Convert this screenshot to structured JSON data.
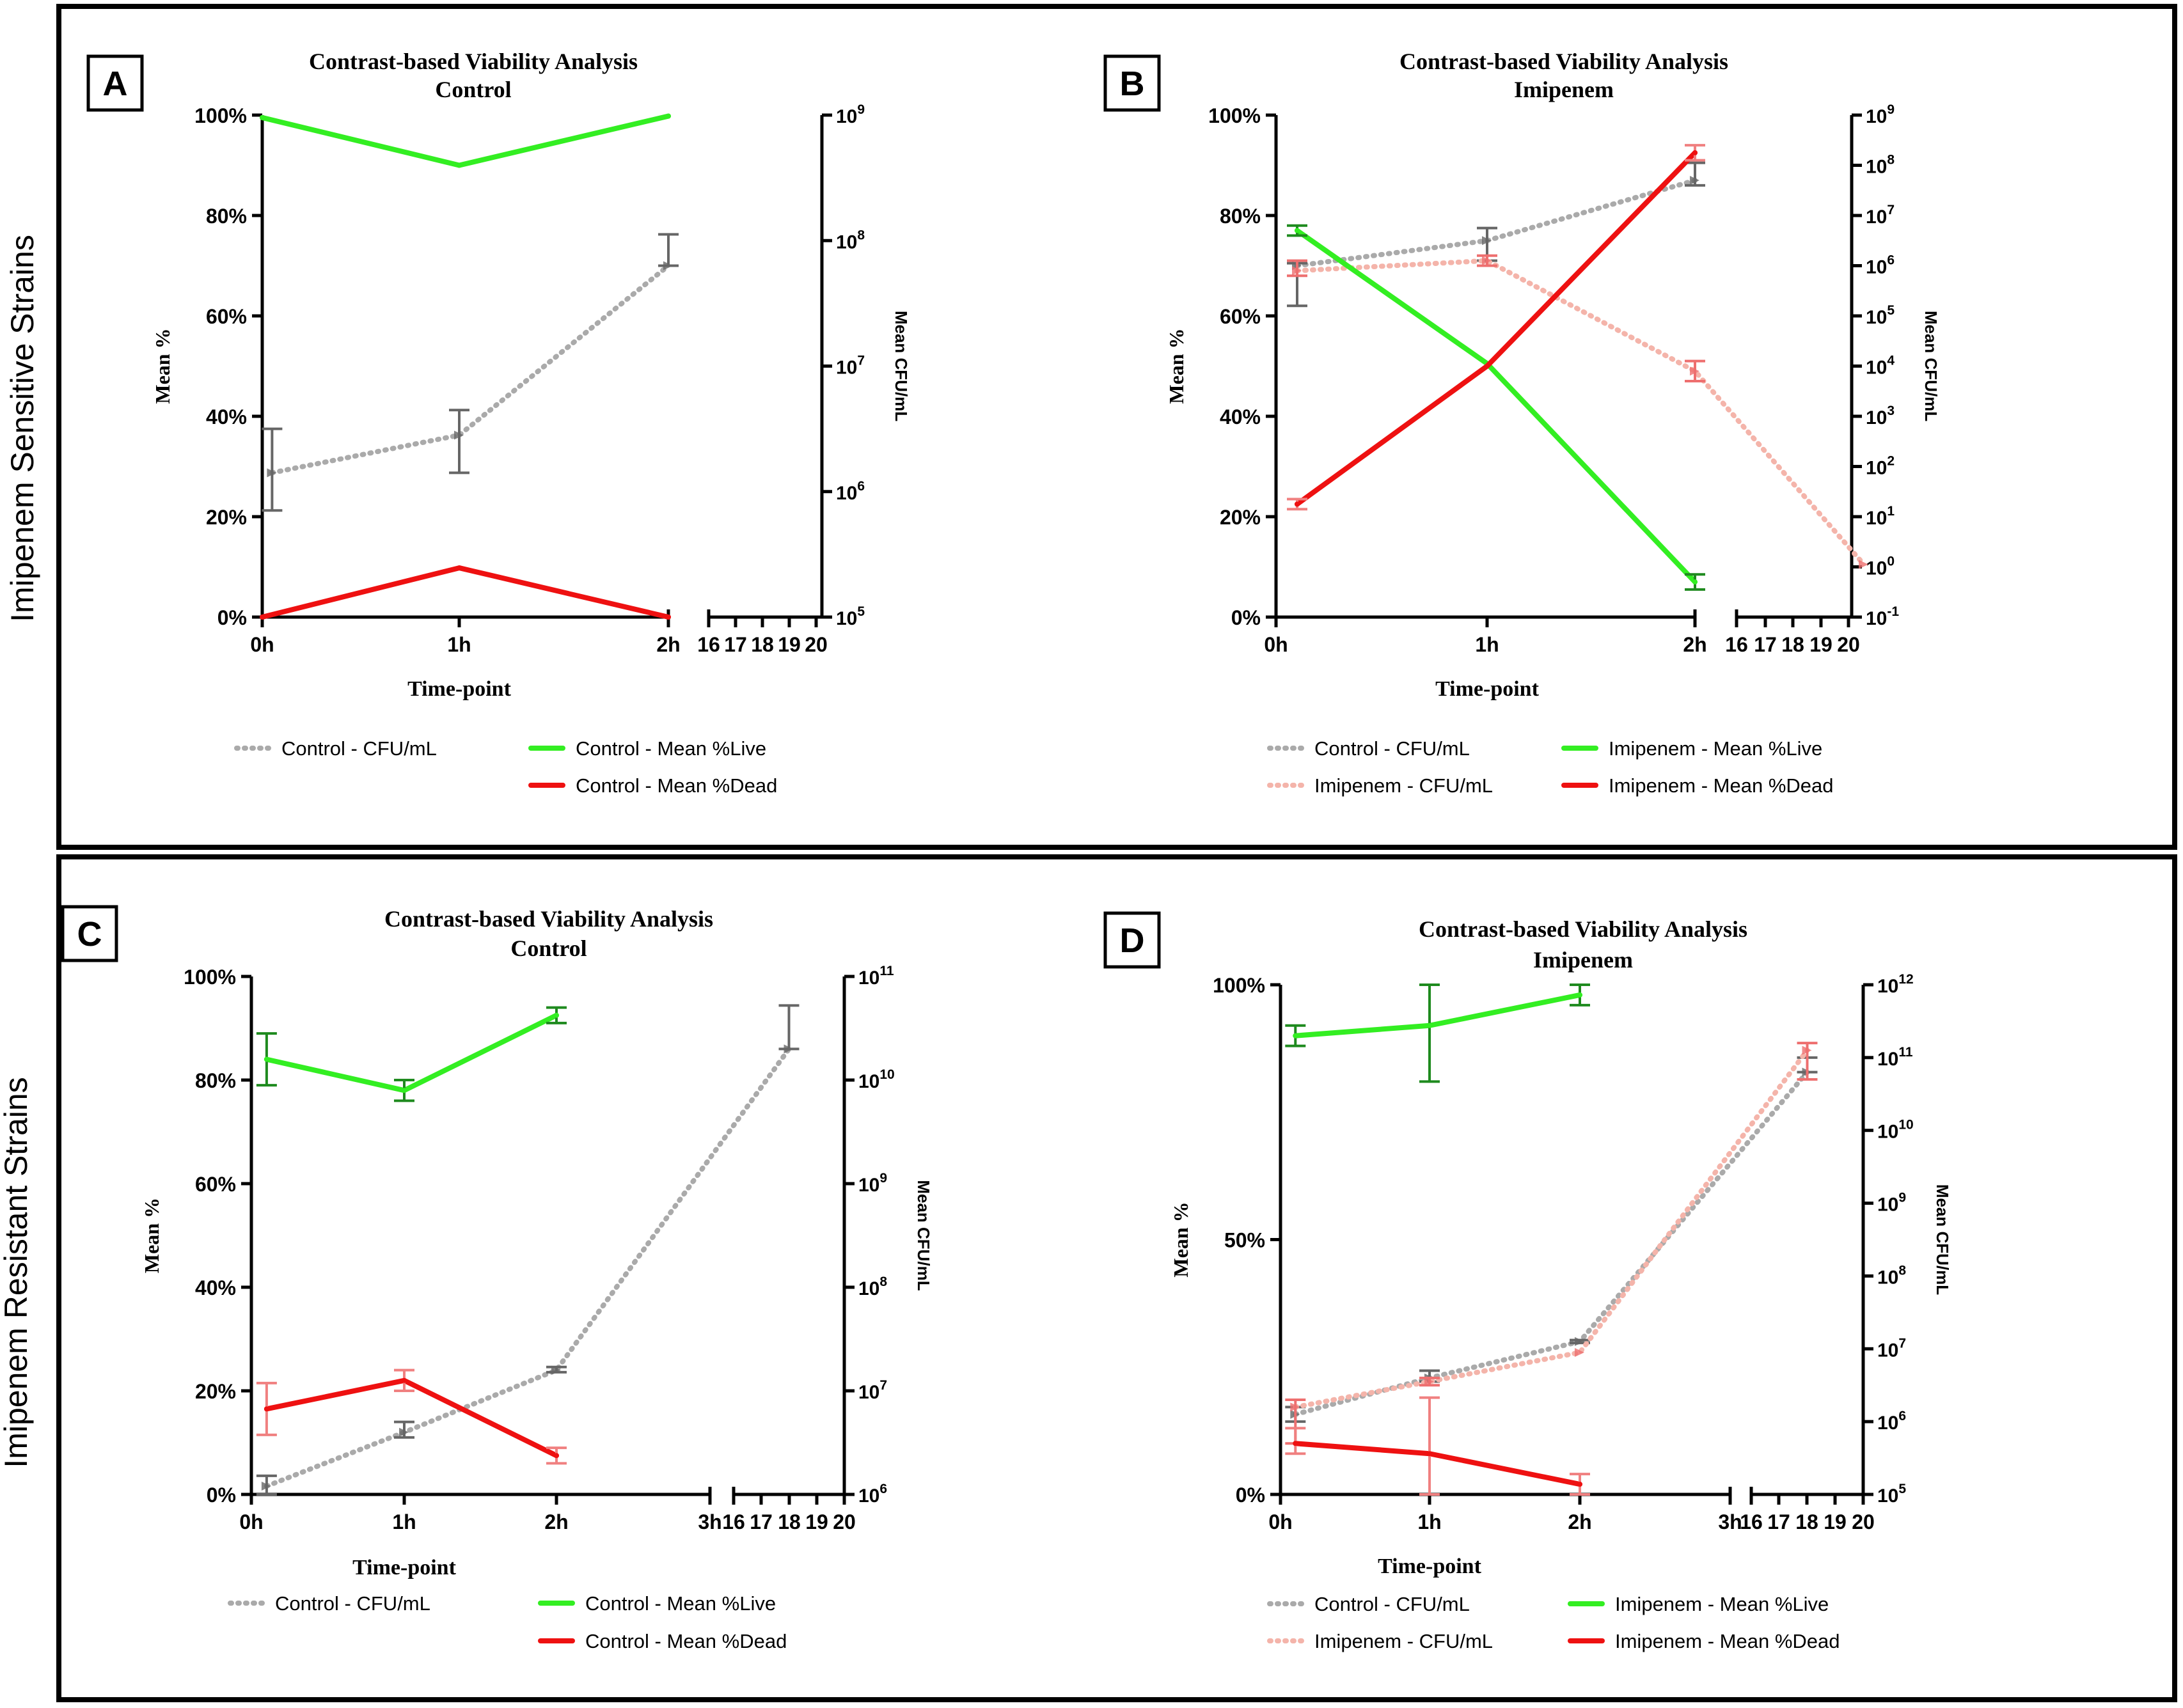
{
  "figure": {
    "row_labels": [
      "Imipenem Sensitive Strains",
      "Imipenem Resistant Strains"
    ]
  },
  "colors": {
    "live": "#33ee22",
    "live_err": "#1e8a1e",
    "dead": "#ee1111",
    "dead_err": "#f08080",
    "control_cfu": "#aaaaaa",
    "control_cfu_err": "#666666",
    "imipenem_cfu": "#f4b4aa",
    "imipenem_cfu_err": "#ee6f6f"
  },
  "chart_data": [
    {
      "panel": "A",
      "type": "line",
      "title": "Contrast-based Viability Analysis",
      "subtitle": "Control",
      "xlabel": "Time-point",
      "ylabel": "Mean %",
      "y2label": "Mean CFU/mL",
      "x_ticks": [
        "0h",
        "1h",
        "2h"
      ],
      "x_break_ticks": [
        "16",
        "17",
        "18",
        "19",
        "20"
      ],
      "y_ticks": [
        "0%",
        "20%",
        "40%",
        "60%",
        "80%",
        "100%"
      ],
      "y_range": [
        0,
        100
      ],
      "y2_range_log10": [
        5,
        9
      ],
      "y2_ticks": [
        {
          "base": "10",
          "exp": "5"
        },
        {
          "base": "10",
          "exp": "6"
        },
        {
          "base": "10",
          "exp": "7"
        },
        {
          "base": "10",
          "exp": "8"
        },
        {
          "base": "10",
          "exp": "9"
        }
      ],
      "series": [
        {
          "name": "Control - CFU/mL",
          "axis": "right",
          "style": "dotted",
          "color": "control_cfu",
          "err_color": "control_cfu_err",
          "points": [
            {
              "x": 0.05,
              "y": 6.15,
              "lo": 5.85,
              "hi": 6.5
            },
            {
              "x": 1,
              "y": 6.45,
              "lo": 6.15,
              "hi": 6.65
            },
            {
              "x": 2,
              "y": 7.8,
              "lo": 7.8,
              "hi": 8.05
            }
          ]
        },
        {
          "name": "Control - Mean %Live",
          "axis": "left",
          "style": "solid",
          "color": "live",
          "err_color": "live_err",
          "points": [
            {
              "x": 0,
              "y": 99.5
            },
            {
              "x": 1,
              "y": 90
            },
            {
              "x": 2,
              "y": 99.8
            }
          ]
        },
        {
          "name": "Control - Mean %Dead",
          "axis": "left",
          "style": "solid",
          "color": "dead",
          "err_color": "dead_err",
          "points": [
            {
              "x": 0,
              "y": 0
            },
            {
              "x": 1,
              "y": 9.8
            },
            {
              "x": 2,
              "y": 0
            }
          ]
        }
      ],
      "legend": [
        {
          "label": "Control - CFU/mL",
          "color": "control_cfu",
          "style": "dotted"
        },
        {
          "label": "Control - Mean %Live",
          "color": "live",
          "style": "solid"
        },
        {
          "label": "Control - Mean %Dead",
          "color": "dead",
          "style": "solid"
        }
      ]
    },
    {
      "panel": "B",
      "type": "line",
      "title": "Contrast-based Viability Analysis",
      "subtitle": "Imipenem",
      "xlabel": "Time-point",
      "ylabel": "Mean %",
      "y2label": "Mean CFU/mL",
      "x_ticks": [
        "0h",
        "1h",
        "2h"
      ],
      "x_break_ticks": [
        "16",
        "17",
        "18",
        "19",
        "20"
      ],
      "y_ticks": [
        "0%",
        "20%",
        "40%",
        "60%",
        "80%",
        "100%"
      ],
      "y_range": [
        0,
        100
      ],
      "y2_range_log10": [
        -1,
        9
      ],
      "y2_ticks": [
        {
          "base": "10",
          "exp": "-1"
        },
        {
          "base": "10",
          "exp": "0"
        },
        {
          "base": "10",
          "exp": "1"
        },
        {
          "base": "10",
          "exp": "2"
        },
        {
          "base": "10",
          "exp": "3"
        },
        {
          "base": "10",
          "exp": "4"
        },
        {
          "base": "10",
          "exp": "5"
        },
        {
          "base": "10",
          "exp": "6"
        },
        {
          "base": "10",
          "exp": "7"
        },
        {
          "base": "10",
          "exp": "8"
        },
        {
          "base": "10",
          "exp": "9"
        }
      ],
      "series": [
        {
          "name": "Control - CFU/mL",
          "axis": "right",
          "style": "dotted",
          "color": "control_cfu",
          "err_color": "control_cfu_err",
          "points": [
            {
              "x": 0.1,
              "y": 6.0,
              "lo": 5.2,
              "hi": 6.05
            },
            {
              "x": 1,
              "y": 6.5,
              "lo": 6.1,
              "hi": 6.75
            },
            {
              "x": 2,
              "y": 7.7,
              "lo": 7.6,
              "hi": 8.05
            }
          ]
        },
        {
          "name": "Imipenem - CFU/mL",
          "axis": "right",
          "style": "dotted",
          "color": "imipenem_cfu",
          "err_color": "imipenem_cfu_err",
          "points": [
            {
              "x": 0.1,
              "y": 5.9,
              "lo": 5.8,
              "hi": 6.1
            },
            {
              "x": 1,
              "y": 6.1,
              "lo": 6.0,
              "hi": 6.2
            },
            {
              "x": 2,
              "y": 3.9,
              "lo": 3.7,
              "hi": 4.1
            },
            {
              "x": 2.8,
              "y": 0.05
            }
          ]
        },
        {
          "name": "Imipenem - Mean %Live",
          "axis": "left",
          "style": "solid",
          "color": "live",
          "err_color": "live_err",
          "points": [
            {
              "x": 0.1,
              "y": 77,
              "lo": 76,
              "hi": 78
            },
            {
              "x": 1,
              "y": 50.5
            },
            {
              "x": 2,
              "y": 7,
              "lo": 5.5,
              "hi": 8.5
            }
          ]
        },
        {
          "name": "Imipenem - Mean %Dead",
          "axis": "left",
          "style": "solid",
          "color": "dead",
          "err_color": "dead_err",
          "points": [
            {
              "x": 0.1,
              "y": 22.5,
              "lo": 21.5,
              "hi": 23.5
            },
            {
              "x": 1,
              "y": 50
            },
            {
              "x": 2,
              "y": 92.5,
              "lo": 91,
              "hi": 94
            }
          ]
        }
      ],
      "legend": [
        {
          "label": "Control - CFU/mL",
          "color": "control_cfu",
          "style": "dotted"
        },
        {
          "label": "Imipenem - Mean %Live",
          "color": "live",
          "style": "solid"
        },
        {
          "label": "Imipenem - CFU/mL",
          "color": "imipenem_cfu",
          "style": "dotted"
        },
        {
          "label": "Imipenem - Mean %Dead",
          "color": "dead",
          "style": "solid"
        }
      ]
    },
    {
      "panel": "C",
      "type": "line",
      "title": "Contrast-based Viability Analysis",
      "subtitle": "Control",
      "xlabel": "Time-point",
      "ylabel": "Mean %",
      "y2label": "Mean CFU/mL",
      "x_ticks": [
        "0h",
        "1h",
        "2h",
        "3h"
      ],
      "x_break_ticks": [
        "16",
        "17",
        "18",
        "19",
        "20"
      ],
      "y_ticks": [
        "0%",
        "20%",
        "40%",
        "60%",
        "80%",
        "100%"
      ],
      "y_range": [
        0,
        100
      ],
      "y2_range_log10": [
        6,
        11
      ],
      "y2_ticks": [
        {
          "base": "10",
          "exp": "6"
        },
        {
          "base": "10",
          "exp": "7"
        },
        {
          "base": "10",
          "exp": "8"
        },
        {
          "base": "10",
          "exp": "9"
        },
        {
          "base": "10",
          "exp": "10"
        },
        {
          "base": "10",
          "exp": "11"
        }
      ],
      "series": [
        {
          "name": "Control - CFU/mL",
          "axis": "right",
          "style": "dotted",
          "color": "control_cfu",
          "err_color": "control_cfu_err",
          "points": [
            {
              "x": 0.1,
              "y": 6.08,
              "lo": 6.0,
              "hi": 6.18
            },
            {
              "x": 1,
              "y": 6.6,
              "lo": 6.55,
              "hi": 6.7
            },
            {
              "x": 2,
              "y": 7.2,
              "lo": 7.18,
              "hi": 7.23
            },
            {
              "x": 18,
              "y": 10.3,
              "lo": 10.3,
              "hi": 10.72
            }
          ]
        },
        {
          "name": "Control - Mean %Live",
          "axis": "left",
          "style": "solid",
          "color": "live",
          "err_color": "live_err",
          "points": [
            {
              "x": 0.1,
              "y": 84,
              "lo": 79,
              "hi": 89
            },
            {
              "x": 1,
              "y": 78,
              "lo": 76,
              "hi": 80
            },
            {
              "x": 2,
              "y": 92.5,
              "lo": 91,
              "hi": 94
            }
          ]
        },
        {
          "name": "Control - Mean %Dead",
          "axis": "left",
          "style": "solid",
          "color": "dead",
          "err_color": "dead_err",
          "points": [
            {
              "x": 0.1,
              "y": 16.5,
              "lo": 11.5,
              "hi": 21.5
            },
            {
              "x": 1,
              "y": 22,
              "lo": 20,
              "hi": 24
            },
            {
              "x": 2,
              "y": 7.5,
              "lo": 6,
              "hi": 9
            }
          ]
        }
      ],
      "legend": [
        {
          "label": "Control - CFU/mL",
          "color": "control_cfu",
          "style": "dotted"
        },
        {
          "label": "Control - Mean %Live",
          "color": "live",
          "style": "solid"
        },
        {
          "label": "Control - Mean %Dead",
          "color": "dead",
          "style": "solid"
        }
      ]
    },
    {
      "panel": "D",
      "type": "line",
      "title": "Contrast-based Viability Analysis",
      "subtitle": "Imipenem",
      "xlabel": "Time-point",
      "ylabel": "Mean %",
      "y2label": "Mean CFU/mL",
      "x_ticks": [
        "0h",
        "1h",
        "2h",
        "3h"
      ],
      "x_break_ticks": [
        "16",
        "17",
        "18",
        "19",
        "20"
      ],
      "y_ticks": [
        "0%",
        "50%",
        "100%"
      ],
      "y_range": [
        0,
        100
      ],
      "y2_range_log10": [
        5,
        12
      ],
      "y2_ticks": [
        {
          "base": "10",
          "exp": "5"
        },
        {
          "base": "10",
          "exp": "6"
        },
        {
          "base": "10",
          "exp": "7"
        },
        {
          "base": "10",
          "exp": "8"
        },
        {
          "base": "10",
          "exp": "9"
        },
        {
          "base": "10",
          "exp": "10"
        },
        {
          "base": "10",
          "exp": "11"
        },
        {
          "base": "10",
          "exp": "12"
        }
      ],
      "series": [
        {
          "name": "Control - CFU/mL",
          "axis": "right",
          "style": "dotted",
          "color": "control_cfu",
          "err_color": "control_cfu_err",
          "points": [
            {
              "x": 0.1,
              "y": 6.1,
              "lo": 6.0,
              "hi": 6.2
            },
            {
              "x": 1,
              "y": 6.6,
              "lo": 6.55,
              "hi": 6.7
            },
            {
              "x": 2,
              "y": 7.1,
              "lo": 7.08,
              "hi": 7.12
            },
            {
              "x": 18,
              "y": 10.8,
              "lo": 10.8,
              "hi": 11.0
            }
          ]
        },
        {
          "name": "Imipenem - CFU/mL",
          "axis": "right",
          "style": "dotted",
          "color": "imipenem_cfu",
          "err_color": "imipenem_cfu_err",
          "points": [
            {
              "x": 0.1,
              "y": 6.2,
              "lo": 5.7,
              "hi": 6.3
            },
            {
              "x": 1,
              "y": 6.55,
              "lo": 6.5,
              "hi": 6.6
            },
            {
              "x": 2,
              "y": 6.95
            },
            {
              "x": 18,
              "y": 11.1,
              "lo": 10.7,
              "hi": 11.2
            }
          ]
        },
        {
          "name": "Imipenem - Mean %Live",
          "axis": "left",
          "style": "solid",
          "color": "live",
          "err_color": "live_err",
          "points": [
            {
              "x": 0.1,
              "y": 90,
              "lo": 88,
              "hi": 92
            },
            {
              "x": 1,
              "y": 92,
              "lo": 81,
              "hi": 100
            },
            {
              "x": 2,
              "y": 98,
              "lo": 96,
              "hi": 100
            }
          ]
        },
        {
          "name": "Imipenem - Mean %Dead",
          "axis": "left",
          "style": "solid",
          "color": "dead",
          "err_color": "dead_err",
          "points": [
            {
              "x": 0.1,
              "y": 10,
              "lo": 8,
              "hi": 13
            },
            {
              "x": 1,
              "y": 8,
              "lo": 0,
              "hi": 19
            },
            {
              "x": 2,
              "y": 2,
              "lo": 0,
              "hi": 4
            }
          ]
        }
      ],
      "legend": [
        {
          "label": "Control - CFU/mL",
          "color": "control_cfu",
          "style": "dotted"
        },
        {
          "label": "Imipenem - Mean %Live",
          "color": "live",
          "style": "solid"
        },
        {
          "label": "Imipenem - CFU/mL",
          "color": "imipenem_cfu",
          "style": "dotted"
        },
        {
          "label": "Imipenem - Mean %Dead",
          "color": "dead",
          "style": "solid"
        }
      ]
    }
  ]
}
